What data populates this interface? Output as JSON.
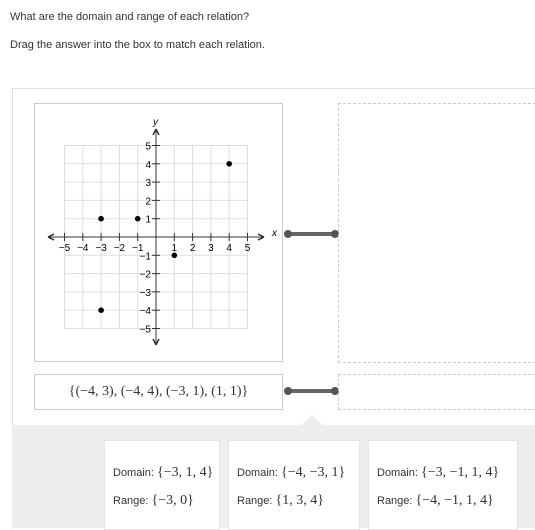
{
  "instructions": {
    "question": "What are the domain and range of each relation?",
    "directions": "Drag the answer into the box to match each relation."
  },
  "relations": [
    {
      "graph": {
        "x_axis_label": "x",
        "y_axis_label": "y",
        "xticks": [
          {
            "value": -5,
            "label": "−5"
          },
          {
            "value": -4,
            "label": "−4"
          },
          {
            "value": -3,
            "label": "−3"
          },
          {
            "value": -2,
            "label": "−2"
          },
          {
            "value": -1,
            "label": "−1"
          },
          1,
          2,
          3,
          4,
          5
        ],
        "yticks": [
          5,
          4,
          3,
          2,
          1,
          {
            "value": -1,
            "label": "−1"
          },
          {
            "value": -2,
            "label": "−2"
          },
          {
            "value": -3,
            "label": "−3"
          },
          {
            "value": -4,
            "label": "−4"
          },
          {
            "value": -5,
            "label": "−5"
          }
        ],
        "points": [
          {
            "x": -3,
            "y": 1
          },
          {
            "x": -1,
            "y": 1
          },
          {
            "x": 4,
            "y": 4
          },
          {
            "x": 1,
            "y": -1
          },
          {
            "x": -3,
            "y": -4
          }
        ]
      }
    },
    {
      "set": "{(−4, 3), (−4, 4), (−3, 1), (1, 1)}"
    }
  ],
  "answers": [
    {
      "domain_label": "Domain:",
      "domain": "{−3, 1, 4}",
      "range_label": "Range:",
      "range": "{−3, 0}"
    },
    {
      "domain_label": "Domain:",
      "domain": "{−4, −3, 1}",
      "range_label": "Range:",
      "range": "{1, 3, 4}"
    },
    {
      "domain_label": "Domain:",
      "domain": "{−3, −1, 1, 4}",
      "range_label": "Range:",
      "range": "{−4, −1, 1, 4}"
    }
  ]
}
